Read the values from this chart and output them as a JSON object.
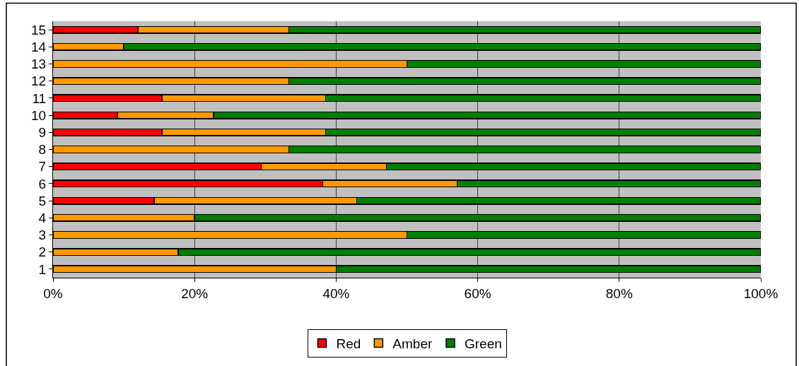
{
  "chart_data": {
    "type": "bar",
    "orientation": "horizontal",
    "stacked": true,
    "categories": [
      "15",
      "14",
      "13",
      "12",
      "11",
      "10",
      "9",
      "8",
      "7",
      "6",
      "5",
      "4",
      "3",
      "2",
      "1"
    ],
    "series": [
      {
        "name": "Red",
        "color": "#ff0000",
        "values": [
          12.0,
          0,
          0,
          0,
          15.4,
          9.1,
          15.4,
          0,
          29.4,
          38.1,
          14.3,
          0,
          0,
          0,
          0
        ]
      },
      {
        "name": "Amber",
        "color": "#ff9900",
        "values": [
          21.3,
          10.0,
          50,
          33.3,
          23.1,
          13.6,
          23.1,
          33.3,
          17.7,
          19.0,
          28.6,
          20,
          50,
          17.7,
          40
        ]
      },
      {
        "name": "Green",
        "color": "#008000",
        "values": [
          66.7,
          90.0,
          50,
          66.7,
          61.5,
          77.3,
          61.5,
          66.7,
          52.9,
          42.9,
          57.1,
          80,
          50,
          82.3,
          60
        ]
      }
    ],
    "xlim": [
      0,
      100
    ],
    "xticks": [
      {
        "value": 0,
        "label": "0%"
      },
      {
        "value": 20,
        "label": "20%"
      },
      {
        "value": 40,
        "label": "40%"
      },
      {
        "value": 60,
        "label": "60%"
      },
      {
        "value": 80,
        "label": "80%"
      },
      {
        "value": 100,
        "label": "100%"
      }
    ],
    "grid": "x",
    "legend": "bottom"
  }
}
